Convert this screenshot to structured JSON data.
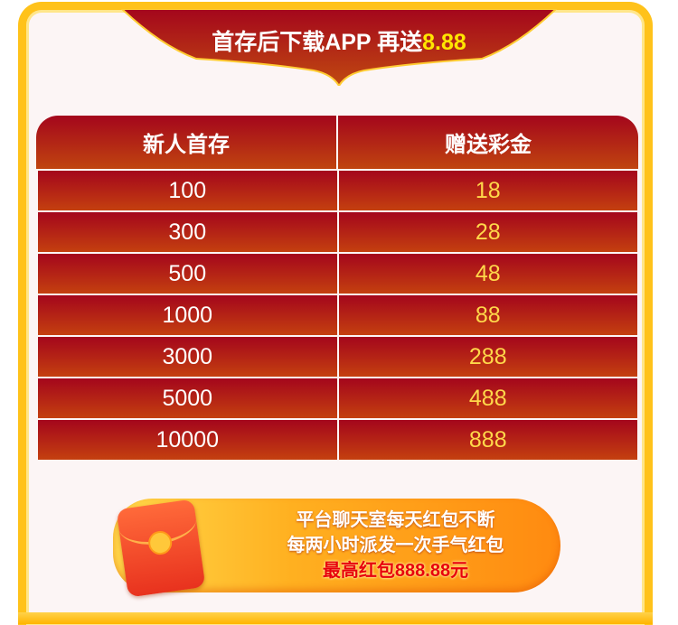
{
  "banner": {
    "title": "首存后下载APP 再送",
    "highlight": "8.88"
  },
  "table": {
    "headers": [
      "新人首存",
      "赠送彩金"
    ],
    "rows": [
      [
        "100",
        "18"
      ],
      [
        "300",
        "28"
      ],
      [
        "500",
        "48"
      ],
      [
        "1000",
        "88"
      ],
      [
        "3000",
        "288"
      ],
      [
        "5000",
        "488"
      ],
      [
        "10000",
        "888"
      ]
    ]
  },
  "promo": {
    "line1": "平台聊天室每天红包不断",
    "line2": "每两小时派发一次手气红包",
    "line3": "最高红包888.88元",
    "icon": "red-envelope-icon"
  },
  "colors": {
    "frame": "#ffc21a",
    "table_red": "#a4061c",
    "highlight": "#ffe600",
    "value": "#ffd84a"
  }
}
